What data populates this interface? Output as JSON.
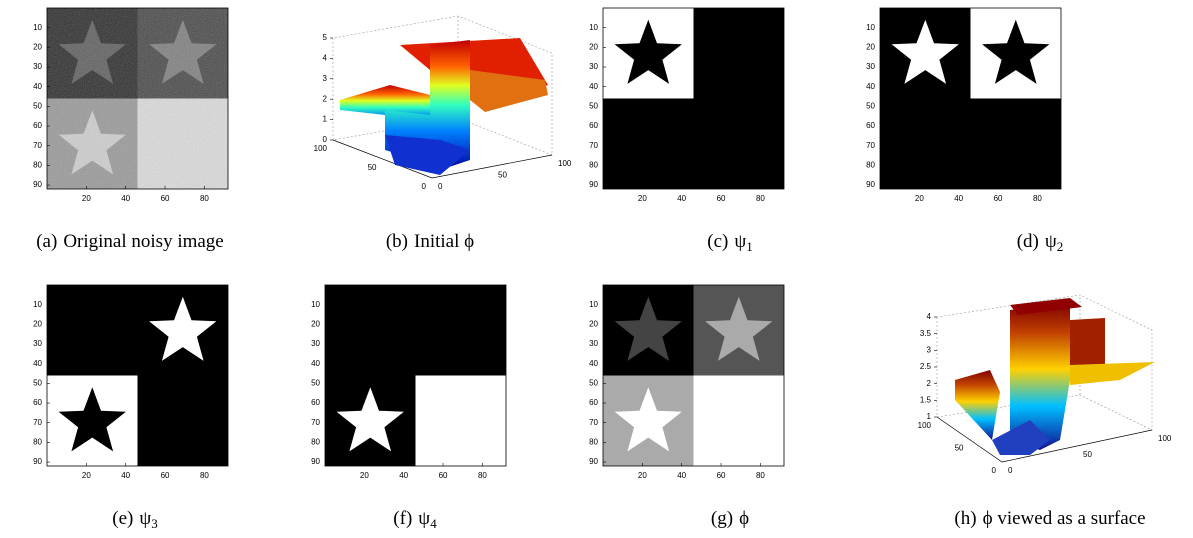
{
  "figure": {
    "image_axis": {
      "yticks": [
        10,
        20,
        30,
        40,
        50,
        60,
        70,
        80,
        90
      ],
      "xticks": [
        20,
        40,
        60,
        80
      ]
    },
    "surface_b": {
      "zticks": [
        0,
        1,
        2,
        3,
        4,
        5
      ],
      "left": [
        100,
        50,
        0
      ],
      "right": [
        0,
        50,
        100
      ]
    },
    "surface_h": {
      "zticks": [
        1,
        1.5,
        2,
        2.5,
        3,
        3.5,
        4
      ],
      "left": [
        100,
        50,
        0
      ],
      "right": [
        0,
        50,
        100
      ]
    },
    "subfigures": [
      {
        "label": "(a)",
        "text": "Original noisy image"
      },
      {
        "label": "(b)",
        "text": "Initial ϕ"
      },
      {
        "label": "(c)",
        "text": "ψ",
        "sub": "1"
      },
      {
        "label": "(d)",
        "text": "ψ",
        "sub": "2"
      },
      {
        "label": "(e)",
        "text": "ψ",
        "sub": "3"
      },
      {
        "label": "(f)",
        "text": "ψ",
        "sub": "4"
      },
      {
        "label": "(g)",
        "text": "ϕ"
      },
      {
        "label": "(h)",
        "text": "ϕ viewed as a surface"
      }
    ]
  }
}
